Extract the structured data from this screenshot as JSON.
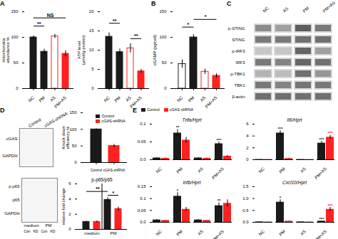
{
  "chart_data": [
    {
      "type": "bar",
      "panel": "A",
      "categories": [
        "NC",
        "PM",
        "AS",
        "PM+AS"
      ],
      "values": [
        100,
        72,
        102,
        68
      ],
      "errors": [
        3,
        5,
        4,
        6
      ],
      "colors": [
        "#1a1a1a",
        "#1a1a1a",
        "#ffffff",
        "#ff2020"
      ],
      "edge_colors": [
        "#1a1a1a",
        "#1a1a1a",
        "#ff2020",
        "#ff2020"
      ],
      "ylabel": "mitochondria\nabundance %",
      "ylim": [
        0,
        150
      ],
      "yticks": [
        0,
        50,
        100,
        150
      ],
      "annotations": [
        {
          "x1": 0,
          "x2": 1,
          "y": 122,
          "text": "**"
        },
        {
          "x1": 0,
          "x2": 3,
          "y": 138,
          "text": "NS"
        }
      ]
    },
    {
      "type": "bar",
      "categories": [
        "NC",
        "PM",
        "AS",
        "PM+AS"
      ],
      "values": [
        13.5,
        9.5,
        10.5,
        4.5
      ],
      "errors": [
        1.0,
        0.8,
        1.2,
        0.5
      ],
      "colors": [
        "#1a1a1a",
        "#1a1a1a",
        "#ffffff",
        "#ff2020"
      ],
      "edge_colors": [
        "#1a1a1a",
        "#1a1a1a",
        "#ff2020",
        "#ff2020"
      ],
      "ylabel": "ATP level\n(μmol/g protein)",
      "ylim": [
        0,
        20
      ],
      "yticks": [
        0,
        5,
        10,
        15,
        20
      ],
      "annotations": [
        {
          "x1": 0,
          "x2": 1,
          "y": 17,
          "text": "**"
        },
        {
          "x1": 2,
          "x2": 3,
          "y": 13,
          "text": "**"
        }
      ]
    },
    {
      "type": "bar",
      "panel": "B",
      "categories": [
        "NC",
        "PM",
        "AS",
        "PM+AS"
      ],
      "values": [
        48,
        100,
        33,
        25
      ],
      "errors": [
        8,
        5,
        5,
        4
      ],
      "colors": [
        "#ffffff",
        "#1a1a1a",
        "#ffffff",
        "#ff2020"
      ],
      "edge_colors": [
        "#1a1a1a",
        "#1a1a1a",
        "#ff2020",
        "#ff2020"
      ],
      "ylabel": "cGAMP (pg/cell)",
      "ylim": [
        0,
        150
      ],
      "yticks": [
        0,
        50,
        100,
        150
      ],
      "annotations": [
        {
          "x1": 0,
          "x2": 1,
          "y": 120,
          "text": "*"
        },
        {
          "x1": 1,
          "x2": 3,
          "y": 135,
          "text": "*"
        }
      ]
    },
    {
      "type": "heatmap",
      "panel": "C",
      "x": [
        "NC",
        "AS",
        "PM",
        "PM+AS"
      ],
      "y": [
        "p-STING",
        "STING",
        "p-IRF3",
        "IRF3",
        "p-TBK1",
        "TBK1",
        "β-actin"
      ],
      "cells": [
        [
          0.6,
          0.5,
          0.85,
          0.7
        ],
        [
          0.7,
          0.7,
          0.75,
          0.75
        ],
        [
          0.3,
          0.3,
          0.8,
          0.5
        ],
        [
          0.7,
          0.65,
          0.8,
          0.75
        ],
        [
          0.4,
          0.35,
          0.75,
          0.55
        ],
        [
          0.7,
          0.65,
          0.72,
          0.7
        ],
        [
          0.75,
          0.75,
          0.75,
          0.75
        ]
      ]
    },
    {
      "type": "blot",
      "panel": "D",
      "categories": [
        "Control",
        "cGAS-shRNA"
      ],
      "rows": [
        "cGAS",
        "GAPDH"
      ]
    },
    {
      "type": "bar",
      "categories": [
        "Control",
        "cGAS-shRNA"
      ],
      "values": [
        100,
        50
      ],
      "errors": [
        2,
        5
      ],
      "colors": [
        "#1a1a1a",
        "#ff2020"
      ],
      "ylabel": "Knock down\nefficiency %",
      "ylim": [
        0,
        150
      ],
      "yticks": [
        0,
        50,
        100,
        150
      ],
      "legend": "upper right"
    },
    {
      "type": "blot",
      "categories": [
        "Con",
        "KD",
        "Con",
        "KD"
      ],
      "rows": [
        "p-p65",
        "p65",
        "GAPDH"
      ],
      "groups": [
        {
          "label": "medium",
          "x1": 0,
          "x2": 1
        },
        {
          "label": "PM",
          "x1": 2,
          "x2": 3
        }
      ]
    },
    {
      "type": "bar",
      "title": "p-p65/p65",
      "categories": [
        null,
        null,
        null,
        null
      ],
      "values": [
        1.0,
        1.0,
        3.9,
        2.7
      ],
      "errors": [
        0.1,
        0.15,
        0.3,
        0.25
      ],
      "colors": [
        "#1a1a1a",
        "#ff2020",
        "#1a1a1a",
        "#ff2020"
      ],
      "ylabel": "relative fold change",
      "ylim": [
        0,
        6
      ],
      "yticks": [
        0,
        2,
        4,
        6
      ],
      "tick_labels": "y",
      "groups": [
        {
          "label": "medium",
          "x1": 0,
          "x2": 1
        },
        {
          "label": "PM",
          "x1": 2,
          "x2": 3
        }
      ],
      "annotations": [
        {
          "x1": 0,
          "x2": 2,
          "y": 5.0,
          "text": "**"
        },
        {
          "x1": 2,
          "x2": 3,
          "y": 4.5,
          "text": "*"
        }
      ]
    },
    {
      "type": "bar",
      "panel": "E",
      "title": "Tnfa/Hprt",
      "categories": [
        "NC",
        "PM",
        "AS",
        "PM+AS"
      ],
      "series": [
        {
          "name": "Control",
          "color": "#1a1a1a",
          "values": [
            0.005,
            0.075,
            0.005,
            0.045
          ],
          "errors": [
            0.001,
            0.01,
            0.001,
            0.005
          ]
        },
        {
          "name": "cGAS shRNA",
          "color": "#ff2020",
          "values": [
            0.004,
            0.055,
            0.004,
            0.01
          ],
          "errors": [
            0.001,
            0.008,
            0.001,
            0.002
          ]
        }
      ],
      "ylim": [
        0,
        0.1
      ],
      "yticks": [
        {
          "value": 0,
          "label": "0.0"
        },
        0.05,
        0.1
      ],
      "legend": "upper left",
      "annotations": [
        {
          "x": 1,
          "series": "Control",
          "text": "**"
        },
        {
          "x": 3,
          "series": "Control",
          "text": "***"
        }
      ]
    },
    {
      "type": "bar",
      "title": "Il6/Hprt",
      "categories": [
        "NC",
        "PM",
        "AS",
        "PM+AS"
      ],
      "series": [
        {
          "name": "Control",
          "color": "#1a1a1a",
          "values": [
            0.05,
            4.5,
            0.05,
            2.8
          ],
          "errors": [
            0.01,
            0.4,
            0.01,
            0.3
          ]
        },
        {
          "name": "cGAS shRNA",
          "color": "#ff2020",
          "values": [
            0.04,
            0.2,
            0.03,
            3.8
          ],
          "errors": [
            0.01,
            0.05,
            0.01,
            0.3
          ]
        }
      ],
      "ylim": [
        0,
        6
      ],
      "yticks": [
        0,
        2,
        4,
        6
      ],
      "annotations": [
        {
          "x": 1,
          "series": "Control",
          "text": "***"
        },
        {
          "x": 3,
          "series": "Control",
          "text": "***"
        },
        {
          "x": 3,
          "series": "cGAS shRNA",
          "text": "***"
        }
      ]
    },
    {
      "type": "bar",
      "title": "Infb/Hprt",
      "categories": [
        "NC",
        "PM",
        "AS",
        "PM+AS"
      ],
      "series": [
        {
          "name": "Control",
          "color": "#1a1a1a",
          "values": [
            0.01,
            0.11,
            0.01,
            0.07
          ],
          "errors": [
            0.002,
            0.015,
            0.002,
            0.012
          ]
        },
        {
          "name": "cGAS shRNA",
          "color": "#ff2020",
          "values": [
            0.008,
            0.055,
            0.008,
            0.08
          ],
          "errors": [
            0.001,
            0.008,
            0.001,
            0.015
          ]
        }
      ],
      "ylim": [
        0,
        0.15
      ],
      "yticks": [
        {
          "value": 0,
          "label": "0.0"
        },
        0.05,
        0.1,
        0.15
      ],
      "annotations": [
        {
          "x": 1,
          "series": "Control",
          "text": "*"
        },
        {
          "x": 3,
          "series": "Control",
          "text": "**"
        }
      ]
    },
    {
      "type": "bar",
      "title": "Cxcl10/Hprt",
      "categories": [
        "NC",
        "PM",
        "AS",
        "PM+AS"
      ],
      "series": [
        {
          "name": "Control",
          "color": "#1a1a1a",
          "values": [
            0.02,
            0.85,
            0.02,
            0.05
          ],
          "errors": [
            0.005,
            0.1,
            0.005,
            0.01
          ]
        },
        {
          "name": "cGAS shRNA",
          "color": "#ff2020",
          "values": [
            0.015,
            0.05,
            0.015,
            0.55
          ],
          "errors": [
            0.003,
            0.01,
            0.003,
            0.08
          ]
        }
      ],
      "ylim": [
        0,
        1.5
      ],
      "yticks": [
        {
          "value": 0,
          "label": "0.0"
        },
        0.5,
        {
          "value": 1,
          "label": "1.0"
        },
        1.5
      ],
      "annotations": [
        {
          "x": 1,
          "series": "Control",
          "text": "*"
        },
        {
          "x": 3,
          "series": "Control",
          "text": "***"
        },
        {
          "x": 3,
          "series": "cGAS shRNA",
          "text": "***"
        }
      ]
    }
  ]
}
